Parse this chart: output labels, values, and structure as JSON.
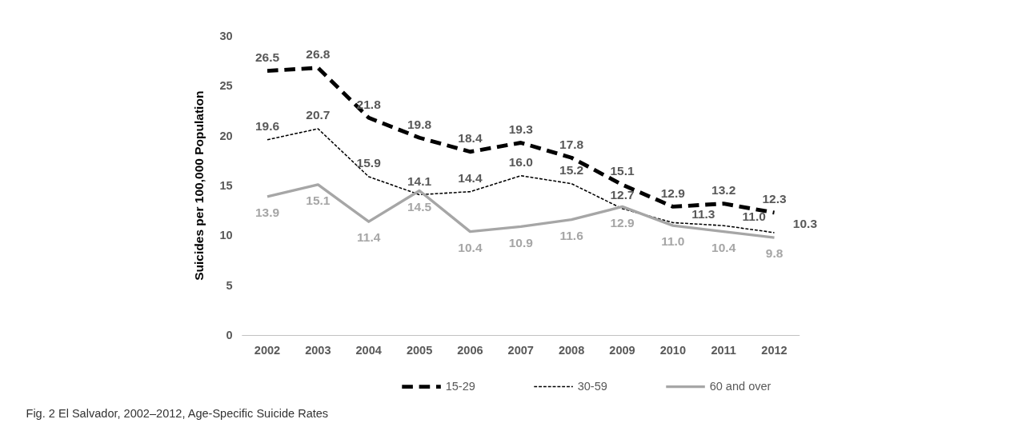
{
  "chart_data": {
    "type": "line",
    "ylabel": "Suicides per 100,000 Population",
    "categories": [
      "2002",
      "2003",
      "2004",
      "2005",
      "2006",
      "2007",
      "2008",
      "2009",
      "2010",
      "2011",
      "2012"
    ],
    "series": [
      {
        "name": "15-29",
        "color": "#000000",
        "line_style": "dashed",
        "values": [
          26.5,
          26.8,
          21.8,
          19.8,
          18.4,
          19.3,
          17.8,
          15.1,
          12.9,
          13.2,
          12.3
        ],
        "value_labels": [
          "26.5",
          "26.8",
          "21.8",
          "19.8",
          "18.4",
          "19.3",
          "17.8",
          "15.1",
          "12.9",
          "13.2",
          "12.3"
        ]
      },
      {
        "name": "30-59",
        "color": "#000000",
        "line_style": "dotted",
        "values": [
          19.6,
          20.7,
          15.9,
          14.1,
          14.4,
          16.0,
          15.2,
          12.7,
          11.3,
          11.0,
          10.3
        ],
        "value_labels": [
          "19.6",
          "20.7",
          "15.9",
          "14.1",
          "14.4",
          "16.0",
          "15.2",
          "12.7",
          "11.3",
          "11.0",
          "10.3"
        ]
      },
      {
        "name": "60 and over",
        "color": "#a6a6a6",
        "line_style": "solid",
        "values": [
          13.9,
          15.1,
          11.4,
          14.5,
          10.4,
          10.9,
          11.6,
          12.9,
          11.0,
          10.4,
          9.8
        ],
        "value_labels": [
          "13.9",
          "15.1",
          "11.4",
          "14.5",
          "10.4",
          "10.9",
          "11.6",
          "12.9",
          "11.0",
          "10.4",
          "9.8"
        ]
      }
    ],
    "ylim": [
      0,
      30
    ],
    "yticks": [
      0,
      5,
      10,
      15,
      20,
      25,
      30
    ],
    "grid": false,
    "legend": "bottom",
    "marker": "none",
    "annotations": [
      "Fig. 2 El Salvador, 2002–2012, Age-Specific Suicide Rates"
    ]
  }
}
